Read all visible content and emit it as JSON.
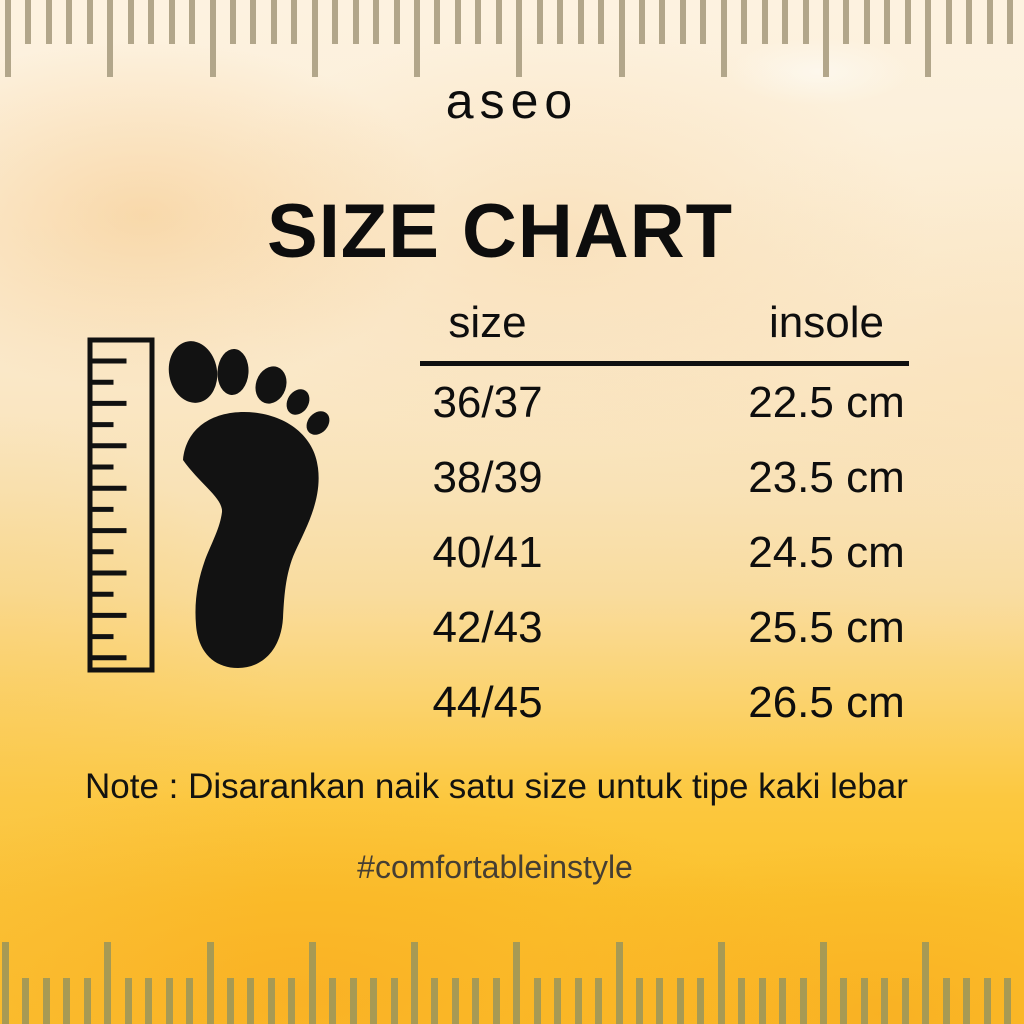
{
  "brand": "aseo",
  "title": "SIZE CHART",
  "table": {
    "headers": {
      "size": "size",
      "insole": "insole"
    },
    "rows": [
      {
        "size": "36/37",
        "insole": "22.5 cm"
      },
      {
        "size": "38/39",
        "insole": "23.5 cm"
      },
      {
        "size": "40/41",
        "insole": "24.5 cm"
      },
      {
        "size": "42/43",
        "insole": "25.5 cm"
      },
      {
        "size": "44/45",
        "insole": "26.5 cm"
      }
    ]
  },
  "note": "Note : Disarankan naik satu size untuk tipe kaki lebar",
  "hashtag": "#comfortableinstyle",
  "icons": {
    "ruler_vertical": "measuring-ruler-icon",
    "footprint": "footprint-icon",
    "edge_rulers": "decorative-ruler-ticks"
  },
  "colors": {
    "text": "#0d0d0d",
    "hashtag_text": "#453e33",
    "bg_top_cream": "#fdf2e0",
    "bg_bottom_yellow": "#fbc02a",
    "watercolor_orange": "#f7a01e",
    "top_ruler_tick": "#b2a68a",
    "bottom_ruler_tick": "#a79a54"
  },
  "chart_data": {
    "type": "table",
    "title": "SIZE CHART",
    "columns": [
      "size",
      "insole"
    ],
    "rows": [
      [
        "36/37",
        "22.5 cm"
      ],
      [
        "38/39",
        "23.5 cm"
      ],
      [
        "40/41",
        "24.5 cm"
      ],
      [
        "42/43",
        "25.5 cm"
      ],
      [
        "44/45",
        "26.5 cm"
      ]
    ]
  }
}
